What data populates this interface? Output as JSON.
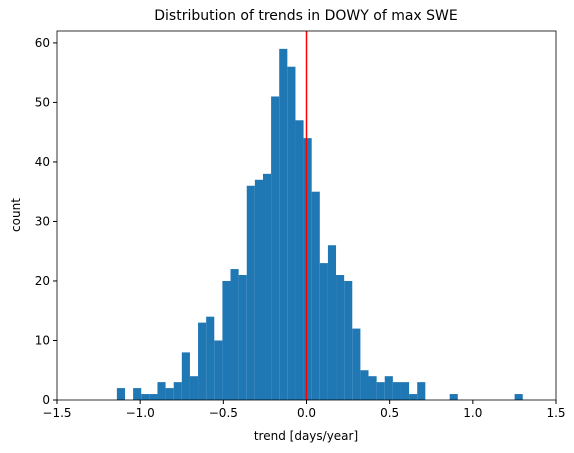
{
  "chart_data": {
    "type": "histogram",
    "title": "Distribution of trends in DOWY of max SWE",
    "xlabel": "trend [days/year]",
    "ylabel": "count",
    "color": "#1f77b4",
    "bins": [
      -1.14,
      -1.0912,
      -1.0424,
      -0.9936,
      -0.9448,
      -0.896,
      -0.8472,
      -0.7984,
      -0.7496,
      -0.7008,
      -0.652,
      -0.6032,
      -0.5544,
      -0.5056,
      -0.4568,
      -0.408,
      -0.3592,
      -0.3104,
      -0.2616,
      -0.2128,
      -0.164,
      -0.1152,
      -0.0664,
      -0.0176,
      0.0312,
      0.08,
      0.1288,
      0.1776,
      0.2264,
      0.2752,
      0.324,
      0.3728,
      0.4216,
      0.4704,
      0.5192,
      0.568,
      0.6168,
      0.6656,
      0.7144,
      0.7632,
      0.812,
      0.8608,
      0.9096,
      0.9584,
      1.0072,
      1.056,
      1.1048,
      1.1536,
      1.2024,
      1.2512,
      1.3
    ],
    "values": [
      2,
      0,
      2,
      1,
      1,
      3,
      2,
      3,
      8,
      4,
      13,
      14,
      10,
      20,
      22,
      21,
      36,
      37,
      38,
      51,
      59,
      56,
      47,
      44,
      35,
      23,
      26,
      21,
      20,
      12,
      5,
      4,
      3,
      4,
      3,
      3,
      1,
      3,
      0,
      0,
      0,
      1,
      0,
      0,
      0,
      0,
      0,
      0,
      0,
      1
    ],
    "vline": {
      "x": 0,
      "color": "#ff0000"
    },
    "xlim": [
      -1.5,
      1.5
    ],
    "xticks": [
      {
        "value": -1.5,
        "label": "−1.5"
      },
      {
        "value": -1.0,
        "label": "−1.0"
      },
      {
        "value": -0.5,
        "label": "−0.5"
      },
      {
        "value": 0,
        "label": "0.0"
      },
      {
        "value": 0.5,
        "label": "0.5"
      },
      {
        "value": 1.0,
        "label": "1.0"
      },
      {
        "value": 1.5,
        "label": "1.5"
      }
    ],
    "ylim": [
      0,
      62
    ],
    "yticks": [
      0,
      10,
      20,
      30,
      40,
      50,
      60
    ]
  }
}
